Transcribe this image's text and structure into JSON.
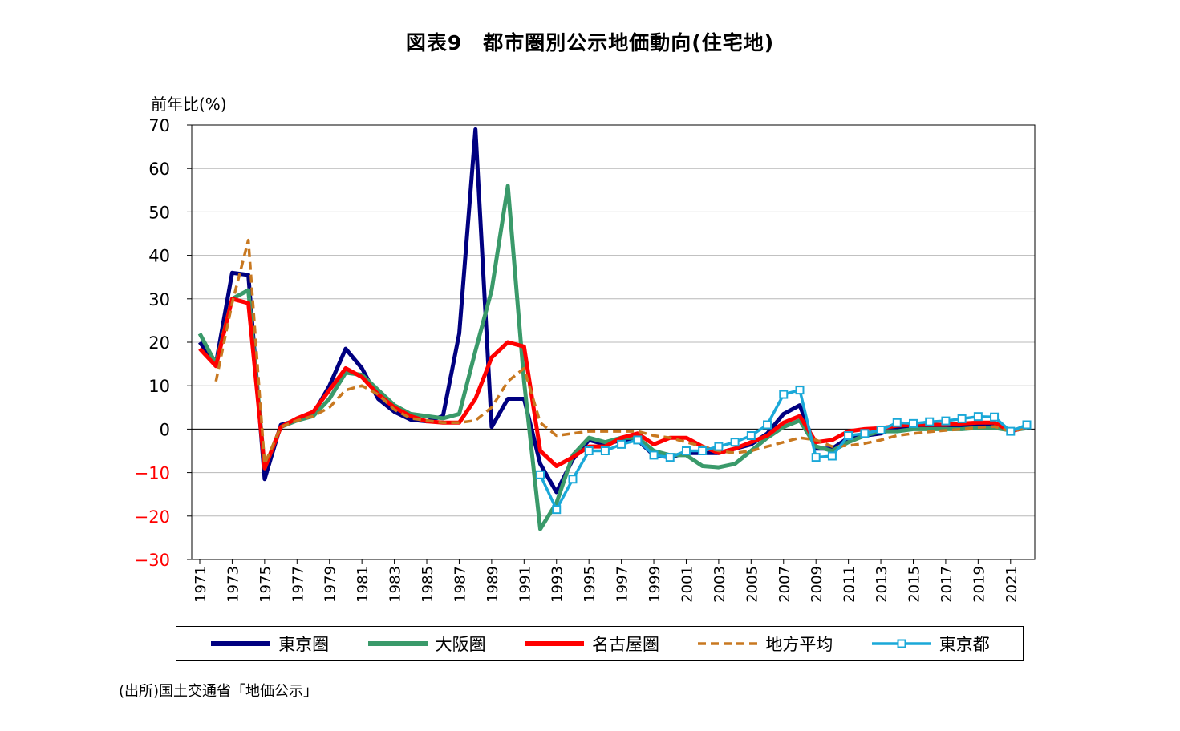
{
  "title": "図表9　都市圏別公示地価動向(住宅地)",
  "source": "(出所)国土交通省「地価公示」",
  "chart_data": {
    "type": "line",
    "title": "図表9　都市圏別公示地価動向(住宅地)",
    "ylabel": "前年比(%)",
    "xlabel": "",
    "ylim": [
      -30,
      70
    ],
    "yticks": [
      "70",
      "60",
      "50",
      "40",
      "30",
      "20",
      "10",
      "0",
      "−10",
      "−20",
      "−30"
    ],
    "xlim": [
      1971,
      2022
    ],
    "xticks": [
      "1971",
      "1973",
      "1975",
      "1977",
      "1979",
      "1981",
      "1983",
      "1985",
      "1987",
      "1989",
      "1991",
      "1993",
      "1995",
      "1997",
      "1999",
      "2001",
      "2003",
      "2005",
      "2007",
      "2009",
      "2011",
      "2013",
      "2015",
      "2017",
      "2019",
      "2021"
    ],
    "negative_tick_color": "#ff0000",
    "grid": true,
    "legend_position": "bottom",
    "x": [
      1971,
      1972,
      1973,
      1974,
      1975,
      1976,
      1977,
      1978,
      1979,
      1980,
      1981,
      1982,
      1983,
      1984,
      1985,
      1986,
      1987,
      1988,
      1989,
      1990,
      1991,
      1992,
      1993,
      1994,
      1995,
      1996,
      1997,
      1998,
      1999,
      2000,
      2001,
      2002,
      2003,
      2004,
      2005,
      2006,
      2007,
      2008,
      2009,
      2010,
      2011,
      2012,
      2013,
      2014,
      2015,
      2016,
      2017,
      2018,
      2019,
      2020,
      2021,
      2022
    ],
    "series": [
      {
        "name": "東京圏",
        "color": "#000080",
        "style": "solid",
        "values": [
          20,
          15,
          36,
          35.5,
          -11.5,
          1,
          2,
          3.5,
          10,
          18.5,
          14,
          7,
          4,
          2.2,
          1.8,
          3,
          22,
          69,
          0.5,
          7,
          7,
          -8,
          -14.5,
          -7,
          -2.5,
          -3.5,
          -2.5,
          -2.5,
          -6,
          -6.5,
          -5.5,
          -5.5,
          -5.5,
          -4.5,
          -3.5,
          -1,
          3.5,
          5.5,
          -4.5,
          -4.5,
          -2,
          -1.5,
          -1,
          0.5,
          0.5,
          0.5,
          0.5,
          0.7,
          1,
          1.1,
          -0.5,
          0.5
        ]
      },
      {
        "name": "大阪圏",
        "color": "#3a9a6a",
        "style": "solid",
        "values": [
          22,
          15,
          30,
          32,
          -9,
          0.5,
          2,
          3,
          7,
          13,
          12.5,
          9,
          5.5,
          3.5,
          3,
          2.5,
          3.5,
          18,
          32,
          56,
          11,
          -23,
          -17,
          -6,
          -2,
          -3,
          -2,
          -2,
          -5,
          -6,
          -6,
          -8.5,
          -8.8,
          -8,
          -5,
          -2,
          0.5,
          2,
          -4,
          -5,
          -3,
          -1.5,
          -0.5,
          -0.5,
          0,
          0,
          0,
          0,
          0.3,
          0.3,
          -0.3,
          0.2
        ]
      },
      {
        "name": "名古屋圏",
        "color": "#ff0000",
        "style": "solid",
        "values": [
          18.5,
          14.5,
          30,
          29,
          -9,
          0.5,
          2.5,
          4,
          9,
          14,
          12,
          8,
          5,
          3,
          1.8,
          1.5,
          1.5,
          7,
          16.5,
          20,
          19,
          -5,
          -8.5,
          -6.5,
          -4,
          -4,
          -2,
          -1,
          -3.5,
          -2,
          -2,
          -4,
          -5.5,
          -4.5,
          -3,
          -1.5,
          1.5,
          3,
          -3,
          -2.5,
          -0.5,
          0,
          0.2,
          0.8,
          1,
          1,
          1,
          1.3,
          1.5,
          1.5,
          -0.5,
          0.5
        ]
      },
      {
        "name": "地方平均",
        "color": "#c87820",
        "style": "dash",
        "values": [
          null,
          11,
          29,
          43.5,
          -8,
          0.5,
          2,
          3,
          5,
          9,
          10,
          8,
          4.5,
          2.5,
          2,
          1.5,
          1.5,
          2,
          5,
          11,
          14,
          1.5,
          -1.5,
          -1,
          -0.5,
          -0.5,
          -0.5,
          -0.5,
          -1.5,
          -2,
          -3,
          -4,
          -5,
          -5.5,
          -5,
          -4,
          -3,
          -2,
          -2.5,
          -4,
          -3.8,
          -3.3,
          -2.5,
          -1.5,
          -1,
          -0.6,
          -0.3,
          0,
          0.4,
          0.6,
          -0.5,
          0.3
        ]
      },
      {
        "name": "東京都",
        "color": "#1aa8d8",
        "style": "square-markers",
        "values": [
          null,
          null,
          null,
          null,
          null,
          null,
          null,
          null,
          null,
          null,
          null,
          null,
          null,
          null,
          null,
          null,
          null,
          null,
          null,
          null,
          null,
          -10.5,
          -18.5,
          -11.5,
          -5,
          -5,
          -3.5,
          -2.5,
          -6,
          -6.5,
          -5,
          -5,
          -4,
          -3,
          -1.5,
          1,
          8,
          9,
          -6.5,
          -6.2,
          -1.5,
          -1,
          -0.2,
          1.5,
          1.3,
          1.7,
          1.9,
          2.4,
          2.9,
          2.8,
          -0.5,
          1
        ]
      }
    ]
  }
}
